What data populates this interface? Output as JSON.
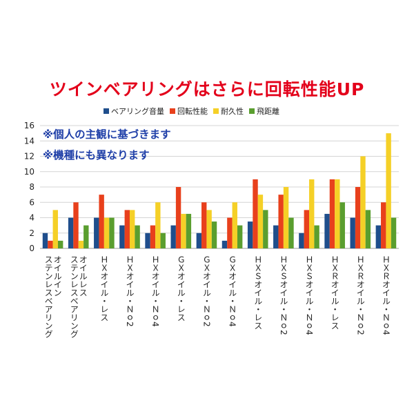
{
  "page": {
    "title": "ツインベアリングはさらに回転性能UP",
    "notes": [
      "※個人の主観に基づきます",
      "※機種にも異なります"
    ]
  },
  "chart_data": {
    "type": "bar",
    "categories": [
      "オイルイン ステンレスベアリング",
      "オイルレス ステンレスベアリング",
      "ＨＸオイル・レス",
      "ＨＸオイル・Ｎｏ2",
      "ＨＸオイル・Ｎｏ4",
      "ＧＸオイル・レス",
      "ＧＸオイル・Ｎｏ2",
      "ＧＸオイル・Ｎｏ4",
      "ＨＸＳオイル・レス",
      "ＨＸＳオイル・Ｎｏ2",
      "ＨＸＳオイル・Ｎｏ4",
      "ＨＸＲオイル・レス",
      "ＨＸＲオイル・Ｎｏ2",
      "ＨＸＲオイル・Ｎｏ4"
    ],
    "series": [
      {
        "name": "ベアリング音量",
        "color": "#1f4e8c",
        "values": [
          2,
          4,
          4,
          3,
          2,
          3,
          2,
          1,
          3.5,
          3,
          2,
          4.5,
          4,
          3
        ]
      },
      {
        "name": "回転性能",
        "color": "#e8401c",
        "values": [
          1,
          6,
          7,
          5,
          3,
          8,
          6,
          4,
          9,
          7,
          5,
          9,
          8,
          6
        ]
      },
      {
        "name": "耐久性",
        "color": "#f5d027",
        "values": [
          5,
          1,
          4,
          5,
          6,
          4.5,
          5,
          6,
          7,
          8,
          9,
          9,
          12,
          15
        ]
      },
      {
        "name": "飛距離",
        "color": "#5a9e2f",
        "values": [
          1,
          3,
          4,
          3,
          2,
          4.5,
          3.5,
          3,
          5,
          4,
          3,
          6,
          5,
          4
        ]
      }
    ],
    "yticks": [
      "0",
      "2",
      "4",
      "6",
      "8",
      "10",
      "12",
      "14",
      "16"
    ],
    "ylim": [
      0,
      16
    ],
    "grid": true,
    "legend_position": "top"
  }
}
